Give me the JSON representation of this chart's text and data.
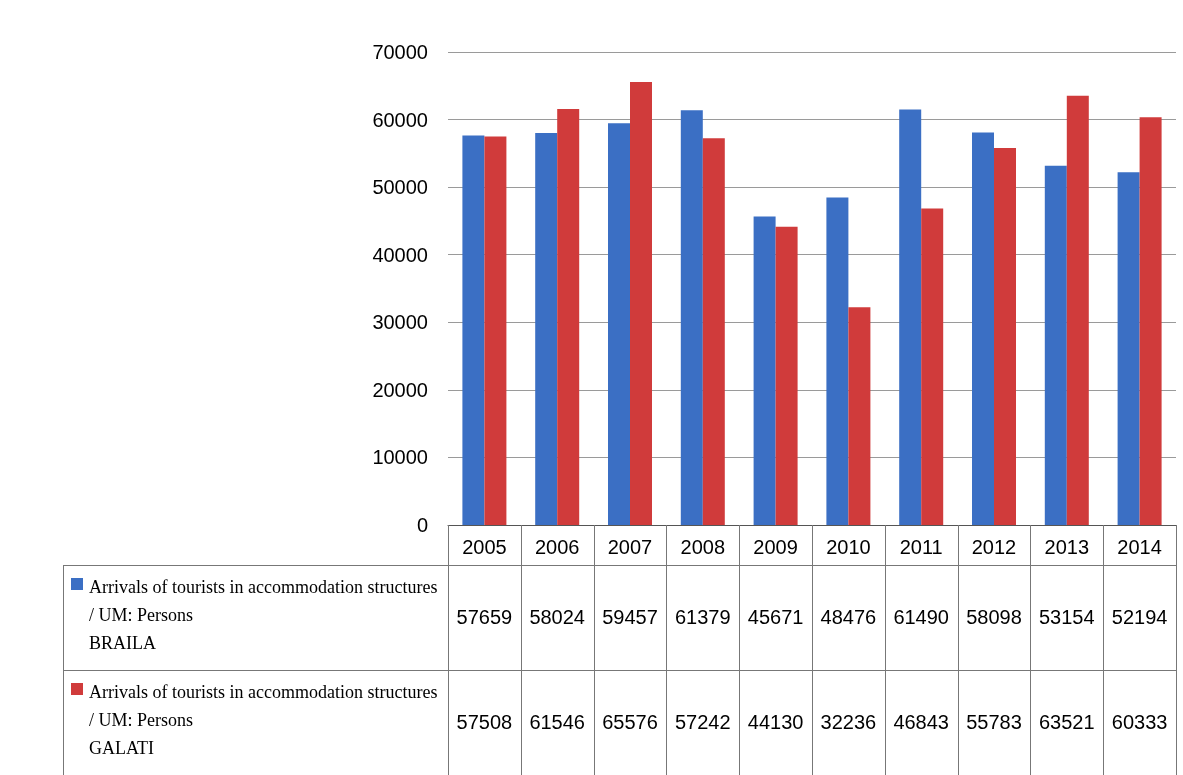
{
  "chart_data": {
    "type": "bar",
    "categories": [
      "2005",
      "2006",
      "2007",
      "2008",
      "2009",
      "2010",
      "2011",
      "2012",
      "2013",
      "2014"
    ],
    "series": [
      {
        "name": "Arrivals of tourists in accommodation structures / UM: Persons\nBRAILA",
        "color": "#3b6fc4",
        "values": [
          57659,
          58024,
          59457,
          61379,
          45671,
          48476,
          61490,
          58098,
          53154,
          52194
        ]
      },
      {
        "name": "Arrivals of tourists in accommodation structures / UM: Persons\nGALATI",
        "color": "#d03b3b",
        "values": [
          57508,
          61546,
          65576,
          57242,
          44130,
          32236,
          46843,
          55783,
          63521,
          60333
        ]
      }
    ],
    "ylim": [
      0,
      70000
    ],
    "yticks": [
      0,
      10000,
      20000,
      30000,
      40000,
      50000,
      60000,
      70000
    ],
    "grid": "y",
    "legend": "bottom",
    "data_labels": true
  }
}
